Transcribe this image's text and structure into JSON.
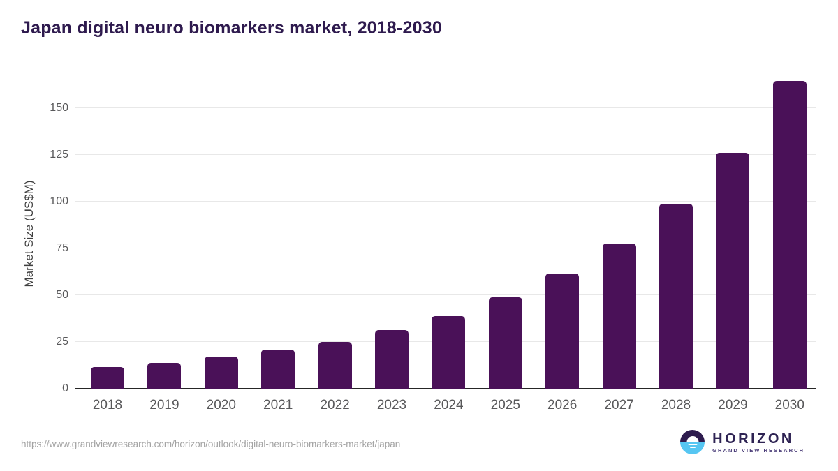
{
  "title": "Japan digital neuro biomarkers market, 2018-2030",
  "colors": {
    "bar": "#4a1158",
    "title_text": "#2e1a4e",
    "gridline": "#e8e8e8",
    "axis_line": "#262626",
    "axis_text": "#58585a",
    "url_text": "#a3a3a3",
    "logo_dark_purple": "#2e1b4e",
    "logo_light_blue": "#56c6f2"
  },
  "chart_data": {
    "type": "bar",
    "title": "Japan digital neuro biomarkers market, 2018-2030",
    "categories": [
      "2018",
      "2019",
      "2020",
      "2021",
      "2022",
      "2023",
      "2024",
      "2025",
      "2026",
      "2027",
      "2028",
      "2029",
      "2030"
    ],
    "values": [
      11.5,
      13.9,
      17.3,
      21.0,
      25.1,
      31.2,
      38.9,
      48.9,
      61.4,
      77.8,
      98.9,
      126.3,
      164.4
    ],
    "xlabel": "",
    "ylabel": "Market Size (US$M)",
    "ylim": [
      0,
      165
    ],
    "yticks": [
      0,
      25,
      50,
      75,
      100,
      125,
      150
    ],
    "grid": "horizontal",
    "legend": "none",
    "bar_color": "#4a1158"
  },
  "footer": {
    "source_url": "https://www.grandviewresearch.com/horizon/outlook/digital-neuro-biomarkers-market/japan",
    "logo": {
      "name": "HORIZON",
      "subtitle": "GRAND VIEW RESEARCH"
    }
  }
}
